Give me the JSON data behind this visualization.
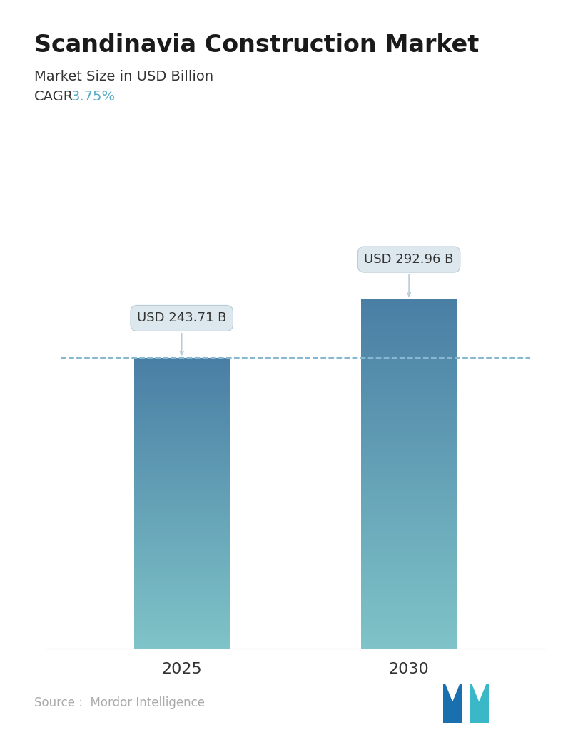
{
  "title": "Scandinavia Construction Market",
  "subtitle": "Market Size in USD Billion",
  "cagr_label": "CAGR",
  "cagr_value": "3.75%",
  "cagr_color": "#5aabca",
  "categories": [
    "2025",
    "2030"
  ],
  "values": [
    243.71,
    292.96
  ],
  "labels": [
    "USD 243.71 B",
    "USD 292.96 B"
  ],
  "bar_top_color": "#4a7fa5",
  "bar_bottom_color": "#7fc4c8",
  "dashed_line_color": "#88b8d0",
  "dashed_line_value": 243.71,
  "source_text": "Source :  Mordor Intelligence",
  "source_color": "#aaaaaa",
  "background_color": "#ffffff",
  "title_fontsize": 24,
  "subtitle_fontsize": 14,
  "cagr_fontsize": 14,
  "tick_fontsize": 16,
  "label_fontsize": 13,
  "source_fontsize": 12,
  "ylim": [
    0,
    340
  ],
  "bar_width": 0.42,
  "bar_positions": [
    0,
    1
  ]
}
